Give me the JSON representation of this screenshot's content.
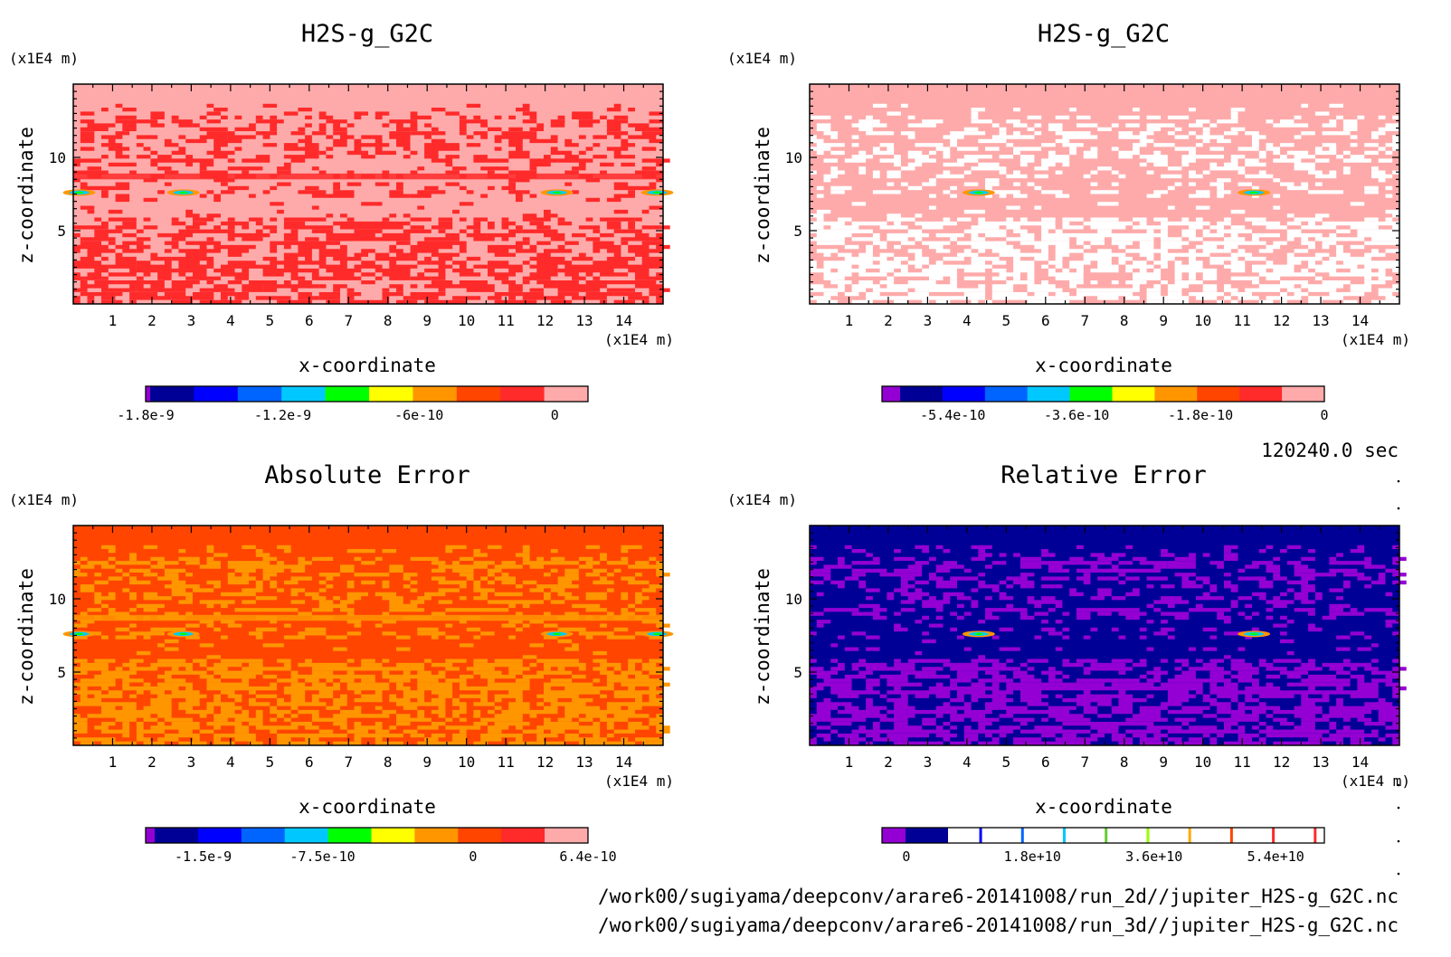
{
  "chart_data": [
    {
      "type": "heatmap",
      "id": "tl",
      "title": "H2S-g_G2C",
      "xlabel": "x-coordinate",
      "ylabel": "z-coordinate",
      "x_unit": "(x1E4 m)",
      "y_unit": "(x1E4 m)",
      "xlim": [
        0,
        15
      ],
      "ylim": [
        0,
        15
      ],
      "x_ticks": [
        "1",
        "2",
        "3",
        "4",
        "5",
        "6",
        "7",
        "8",
        "9",
        "10",
        "11",
        "12",
        "13",
        "14"
      ],
      "y_ticks": [
        "5",
        "10"
      ],
      "colorbar": {
        "colors": [
          "#9400d3",
          "#000096",
          "#0000ff",
          "#0064ff",
          "#00c8ff",
          "#00ff00",
          "#ffff00",
          "#ff9600",
          "#ff4500",
          "#ff2a2a",
          "#ffaaaa"
        ],
        "labels": [
          "-1.8e-9",
          "-1.2e-9",
          "-6e-10",
          "0"
        ]
      },
      "dominant_colors": [
        "#ffaaaa",
        "#ff2a2a"
      ]
    },
    {
      "type": "heatmap",
      "id": "tr",
      "title": "H2S-g_G2C",
      "xlabel": "x-coordinate",
      "ylabel": "z-coordinate",
      "x_unit": "(x1E4 m)",
      "y_unit": "(x1E4 m)",
      "xlim": [
        0,
        15
      ],
      "ylim": [
        0,
        15
      ],
      "x_ticks": [
        "1",
        "2",
        "3",
        "4",
        "5",
        "6",
        "7",
        "8",
        "9",
        "10",
        "11",
        "12",
        "13",
        "14"
      ],
      "y_ticks": [
        "5",
        "10"
      ],
      "colorbar": {
        "colors": [
          "#9400d3",
          "#000096",
          "#0000ff",
          "#0064ff",
          "#00c8ff",
          "#00ff00",
          "#ffff00",
          "#ff9600",
          "#ff4500",
          "#ff2a2a",
          "#ffaaaa"
        ],
        "labels": [
          "-5.4e-10",
          "-3.6e-10",
          "-1.8e-10",
          "0"
        ]
      },
      "dominant_colors": [
        "#ffaaaa",
        "#ffffff"
      ]
    },
    {
      "type": "heatmap",
      "id": "bl",
      "title": "Absolute Error",
      "xlabel": "x-coordinate",
      "ylabel": "z-coordinate",
      "x_unit": "(x1E4 m)",
      "y_unit": "(x1E4 m)",
      "xlim": [
        0,
        15
      ],
      "ylim": [
        0,
        15
      ],
      "x_ticks": [
        "1",
        "2",
        "3",
        "4",
        "5",
        "6",
        "7",
        "8",
        "9",
        "10",
        "11",
        "12",
        "13",
        "14"
      ],
      "y_ticks": [
        "5",
        "10"
      ],
      "colorbar": {
        "colors": [
          "#9400d3",
          "#000096",
          "#0000ff",
          "#0064ff",
          "#00c8ff",
          "#00ff00",
          "#ffff00",
          "#ff9600",
          "#ff4500",
          "#ff2a2a",
          "#ffaaaa"
        ],
        "labels": [
          "-1.5e-9",
          "-7.5e-10",
          "0",
          "6.4e-10"
        ]
      },
      "dominant_colors": [
        "#ff4500",
        "#ff9600"
      ]
    },
    {
      "type": "heatmap",
      "id": "br",
      "title": "Relative Error",
      "xlabel": "x-coordinate",
      "ylabel": "z-coordinate",
      "x_unit": "(x1E4 m)",
      "y_unit": "(x1E4 m)",
      "xlim": [
        0,
        15
      ],
      "ylim": [
        0,
        15
      ],
      "x_ticks": [
        "1",
        "2",
        "3",
        "4",
        "5",
        "6",
        "7",
        "8",
        "9",
        "10",
        "11",
        "12",
        "13",
        "14"
      ],
      "y_ticks": [
        "5",
        "10"
      ],
      "colorbar": {
        "colors": [
          "#9400d3",
          "#000096",
          "#ffffff",
          "#ffffff",
          "#ffffff",
          "#ffffff",
          "#ffffff",
          "#ffffff",
          "#ffffff",
          "#ffffff"
        ],
        "line_colors": [
          "#0000ff",
          "#0064ff",
          "#00c8ff",
          "#66cc33",
          "#99ff00",
          "#ffaa00",
          "#ff4500",
          "#ff2a2a",
          "#ff2a2a"
        ],
        "labels": [
          "0",
          "1.8e+10",
          "3.6e+10",
          "5.4e+10"
        ]
      },
      "dominant_colors": [
        "#000096",
        "#9400d3"
      ]
    }
  ],
  "time_label": "120240.0 sec",
  "footer": {
    "line1": "/work00/sugiyama/deepconv/arare6-20141008/run_2d//jupiter_H2S-g_G2C.nc",
    "line2": "/work00/sugiyama/deepconv/arare6-20141008/run_3d//jupiter_H2S-g_G2C.nc"
  }
}
